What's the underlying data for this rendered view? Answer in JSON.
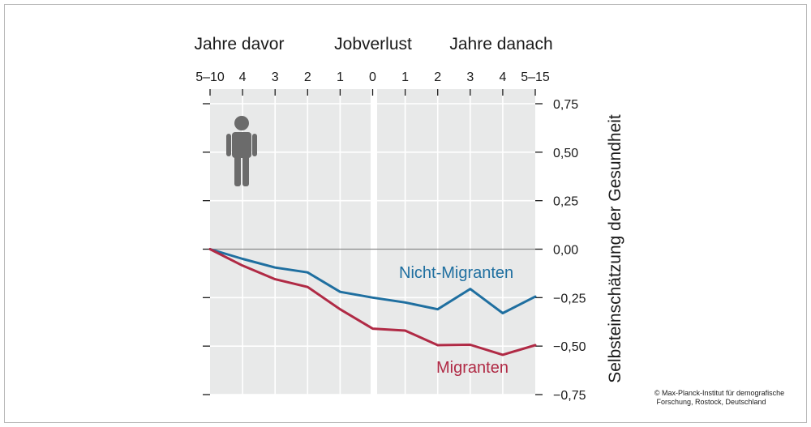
{
  "headers": {
    "before": "Jahre davor",
    "event": "Jobverlust",
    "after": "Jahre danach"
  },
  "credit": {
    "line1": "© Max-Planck-Institut für demografische",
    "line2": "Forschung, Rostock, Deutschland"
  },
  "icon": "person-icon",
  "colors": {
    "nicht_migranten": "#1f6fa0",
    "migranten": "#b02a45",
    "panel": "#e8e9e9",
    "grid": "#ffffff",
    "zero_line": "#8a8a8a"
  },
  "chart_data": {
    "type": "line",
    "x": [
      "5–10",
      "4",
      "3",
      "2",
      "1",
      "0",
      "1",
      "2",
      "3",
      "4",
      "5–15"
    ],
    "ylabel": "Selbsteinschätzung der Gesundheit",
    "ylim": [
      -0.75,
      0.75
    ],
    "y_ticks": [
      "0,75",
      "0,50",
      "0,25",
      "0,00",
      "−0,25",
      "−0,50",
      "−0,75"
    ],
    "y_tick_values": [
      0.75,
      0.5,
      0.25,
      0,
      -0.25,
      -0.5,
      -0.75
    ],
    "grid": true,
    "series": [
      {
        "name": "Nicht-Migranten",
        "values": [
          0,
          -0.05,
          -0.095,
          -0.12,
          -0.22,
          -0.25,
          -0.275,
          -0.31,
          -0.205,
          -0.33,
          -0.245
        ]
      },
      {
        "name": "Migranten",
        "values": [
          0,
          -0.085,
          -0.155,
          -0.195,
          -0.31,
          -0.41,
          -0.42,
          -0.495,
          -0.493,
          -0.545,
          -0.495
        ]
      }
    ]
  }
}
